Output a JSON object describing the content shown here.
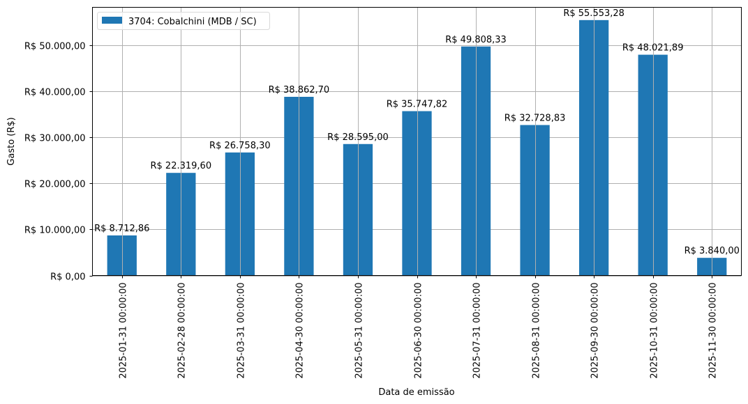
{
  "chart_data": {
    "type": "bar",
    "title": "",
    "xlabel": "Data de emissão",
    "ylabel": "Gasto (R$)",
    "ylim": [
      0,
      58333
    ],
    "grid": true,
    "legend_position": "upper left",
    "colors": {
      "bar": "#1f77b4",
      "grid": "#b0b0b0",
      "axis": "#000000"
    },
    "yticks": [
      0,
      10000,
      20000,
      30000,
      40000,
      50000
    ],
    "ytick_labels": [
      "R$ 0,00",
      "R$ 10.000,00",
      "R$ 20.000,00",
      "R$ 30.000,00",
      "R$ 40.000,00",
      "R$ 50.000,00"
    ],
    "categories": [
      "2025-01-31 00:00:00",
      "2025-02-28 00:00:00",
      "2025-03-31 00:00:00",
      "2025-04-30 00:00:00",
      "2025-05-31 00:00:00",
      "2025-06-30 00:00:00",
      "2025-07-31 00:00:00",
      "2025-08-31 00:00:00",
      "2025-09-30 00:00:00",
      "2025-10-31 00:00:00",
      "2025-11-30 00:00:00"
    ],
    "series": [
      {
        "name": "3704: Cobalchini (MDB / SC)",
        "values": [
          8712.86,
          22319.6,
          26758.3,
          38862.7,
          28595.0,
          35747.82,
          49808.33,
          32728.83,
          55553.28,
          48021.89,
          3840.0
        ],
        "labels": [
          "R$ 8.712,86",
          "R$ 22.319,60",
          "R$ 26.758,30",
          "R$ 38.862,70",
          "R$ 28.595,00",
          "R$ 35.747,82",
          "R$ 49.808,33",
          "R$ 32.728,83",
          "R$ 55.553,28",
          "R$ 48.021,89",
          "R$ 3.840,00"
        ]
      }
    ]
  }
}
